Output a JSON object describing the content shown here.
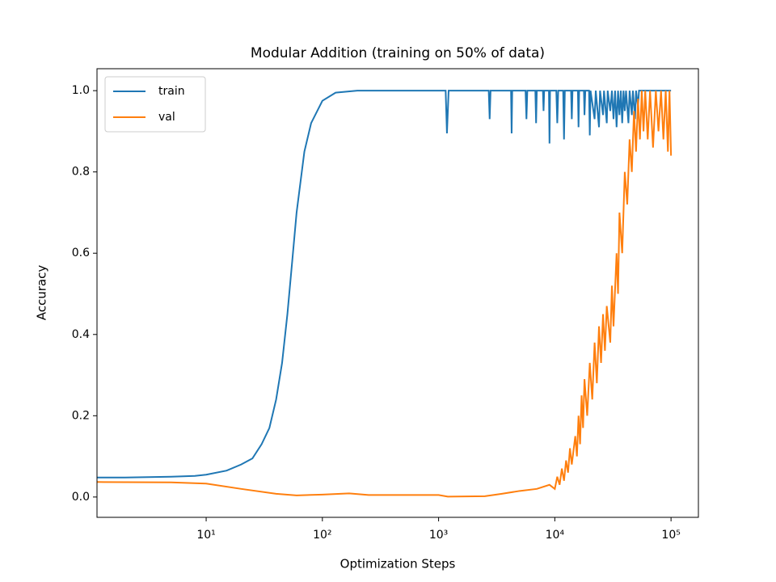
{
  "chart_data": {
    "type": "line",
    "title": "Modular Addition (training on 50% of data)",
    "xlabel": "Optimization Steps",
    "ylabel": "Accuracy",
    "xscale": "log",
    "legend": "upper left",
    "xlim": [
      1.15,
      172000
    ],
    "ylim": [
      -0.05,
      1.054
    ],
    "xticks": [
      {
        "value": 10,
        "label": "10¹"
      },
      {
        "value": 100,
        "label": "10²"
      },
      {
        "value": 1000,
        "label": "10³"
      },
      {
        "value": 10000,
        "label": "10⁴"
      },
      {
        "value": 100000,
        "label": "10⁵"
      }
    ],
    "yticks": [
      {
        "value": 0,
        "label": "0.0"
      },
      0.2,
      0.4,
      0.6,
      0.8,
      {
        "value": 1,
        "label": "1.0"
      }
    ],
    "series": [
      {
        "name": "train",
        "color": "#1f77b4",
        "x": [
          1,
          2,
          5,
          8,
          10,
          15,
          20,
          25,
          30,
          35,
          40,
          45,
          50,
          55,
          60,
          70,
          80,
          100,
          130,
          200,
          1150,
          1180,
          1220,
          2700,
          2750,
          2800,
          4200,
          4250,
          4300,
          5600,
          5700,
          5800,
          6800,
          6900,
          7000,
          7900,
          8000,
          8100,
          8900,
          9000,
          9100,
          10300,
          10500,
          10700,
          11800,
          12000,
          12200,
          13800,
          14000,
          14200,
          15800,
          16000,
          16200,
          17800,
          18000,
          18300,
          19700,
          20000,
          20300,
          22000,
          22500,
          24000,
          24500,
          26000,
          26500,
          28000,
          28500,
          30000,
          31000,
          32000,
          33000,
          34000,
          35000,
          36000,
          37000,
          38000,
          39000,
          40000,
          41000,
          43000,
          44000,
          46000,
          47000,
          49000,
          50000,
          52000,
          53000,
          100000
        ],
        "values": [
          0.048,
          0.048,
          0.05,
          0.052,
          0.055,
          0.065,
          0.08,
          0.095,
          0.13,
          0.17,
          0.24,
          0.33,
          0.45,
          0.58,
          0.7,
          0.85,
          0.92,
          0.975,
          0.995,
          1.0,
          1.0,
          0.895,
          1.0,
          1.0,
          0.93,
          1.0,
          1.0,
          0.895,
          1.0,
          1.0,
          0.93,
          1.0,
          1.0,
          0.92,
          1.0,
          1.0,
          0.95,
          1.0,
          1.0,
          0.87,
          1.0,
          1.0,
          0.92,
          1.0,
          1.0,
          0.88,
          1.0,
          1.0,
          0.93,
          1.0,
          1.0,
          0.91,
          1.0,
          1.0,
          0.94,
          1.0,
          1.0,
          0.89,
          1.0,
          0.93,
          1.0,
          0.91,
          1.0,
          0.94,
          1.0,
          0.92,
          1.0,
          0.95,
          1.0,
          0.93,
          1.0,
          0.91,
          1.0,
          0.94,
          1.0,
          0.92,
          1.0,
          0.95,
          1.0,
          0.92,
          1.0,
          0.94,
          1.0,
          0.93,
          1.0,
          0.96,
          1.0,
          1.0
        ]
      },
      {
        "name": "val",
        "color": "#ff7f0e",
        "x": [
          1,
          5,
          10,
          20,
          40,
          60,
          100,
          170,
          250,
          1000,
          1200,
          2500,
          3500,
          5000,
          7000,
          9000,
          10000,
          10500,
          11000,
          11500,
          12000,
          12500,
          13000,
          13500,
          14000,
          15000,
          15500,
          16000,
          16500,
          17000,
          17500,
          18000,
          19000,
          20000,
          21000,
          22000,
          23000,
          24000,
          25000,
          26000,
          27000,
          28000,
          30000,
          31000,
          32000,
          34000,
          35000,
          36000,
          38000,
          40000,
          42000,
          44000,
          46000,
          48000,
          50000,
          52000,
          54000,
          56000,
          58000,
          60000,
          63000,
          66000,
          70000,
          74000,
          78000,
          82000,
          86000,
          90000,
          94000,
          97000,
          100000
        ],
        "values": [
          0.037,
          0.036,
          0.033,
          0.02,
          0.008,
          0.004,
          0.006,
          0.009,
          0.005,
          0.005,
          0.001,
          0.002,
          0.008,
          0.015,
          0.02,
          0.03,
          0.02,
          0.05,
          0.03,
          0.07,
          0.04,
          0.09,
          0.06,
          0.12,
          0.08,
          0.15,
          0.1,
          0.2,
          0.13,
          0.25,
          0.17,
          0.29,
          0.2,
          0.33,
          0.24,
          0.38,
          0.28,
          0.42,
          0.33,
          0.45,
          0.36,
          0.47,
          0.38,
          0.52,
          0.42,
          0.6,
          0.5,
          0.7,
          0.6,
          0.8,
          0.72,
          0.88,
          0.8,
          0.95,
          0.85,
          0.98,
          0.88,
          1.0,
          0.9,
          1.0,
          0.88,
          1.0,
          0.86,
          1.0,
          0.9,
          1.0,
          0.88,
          1.0,
          0.85,
          1.0,
          0.84
        ]
      }
    ]
  }
}
